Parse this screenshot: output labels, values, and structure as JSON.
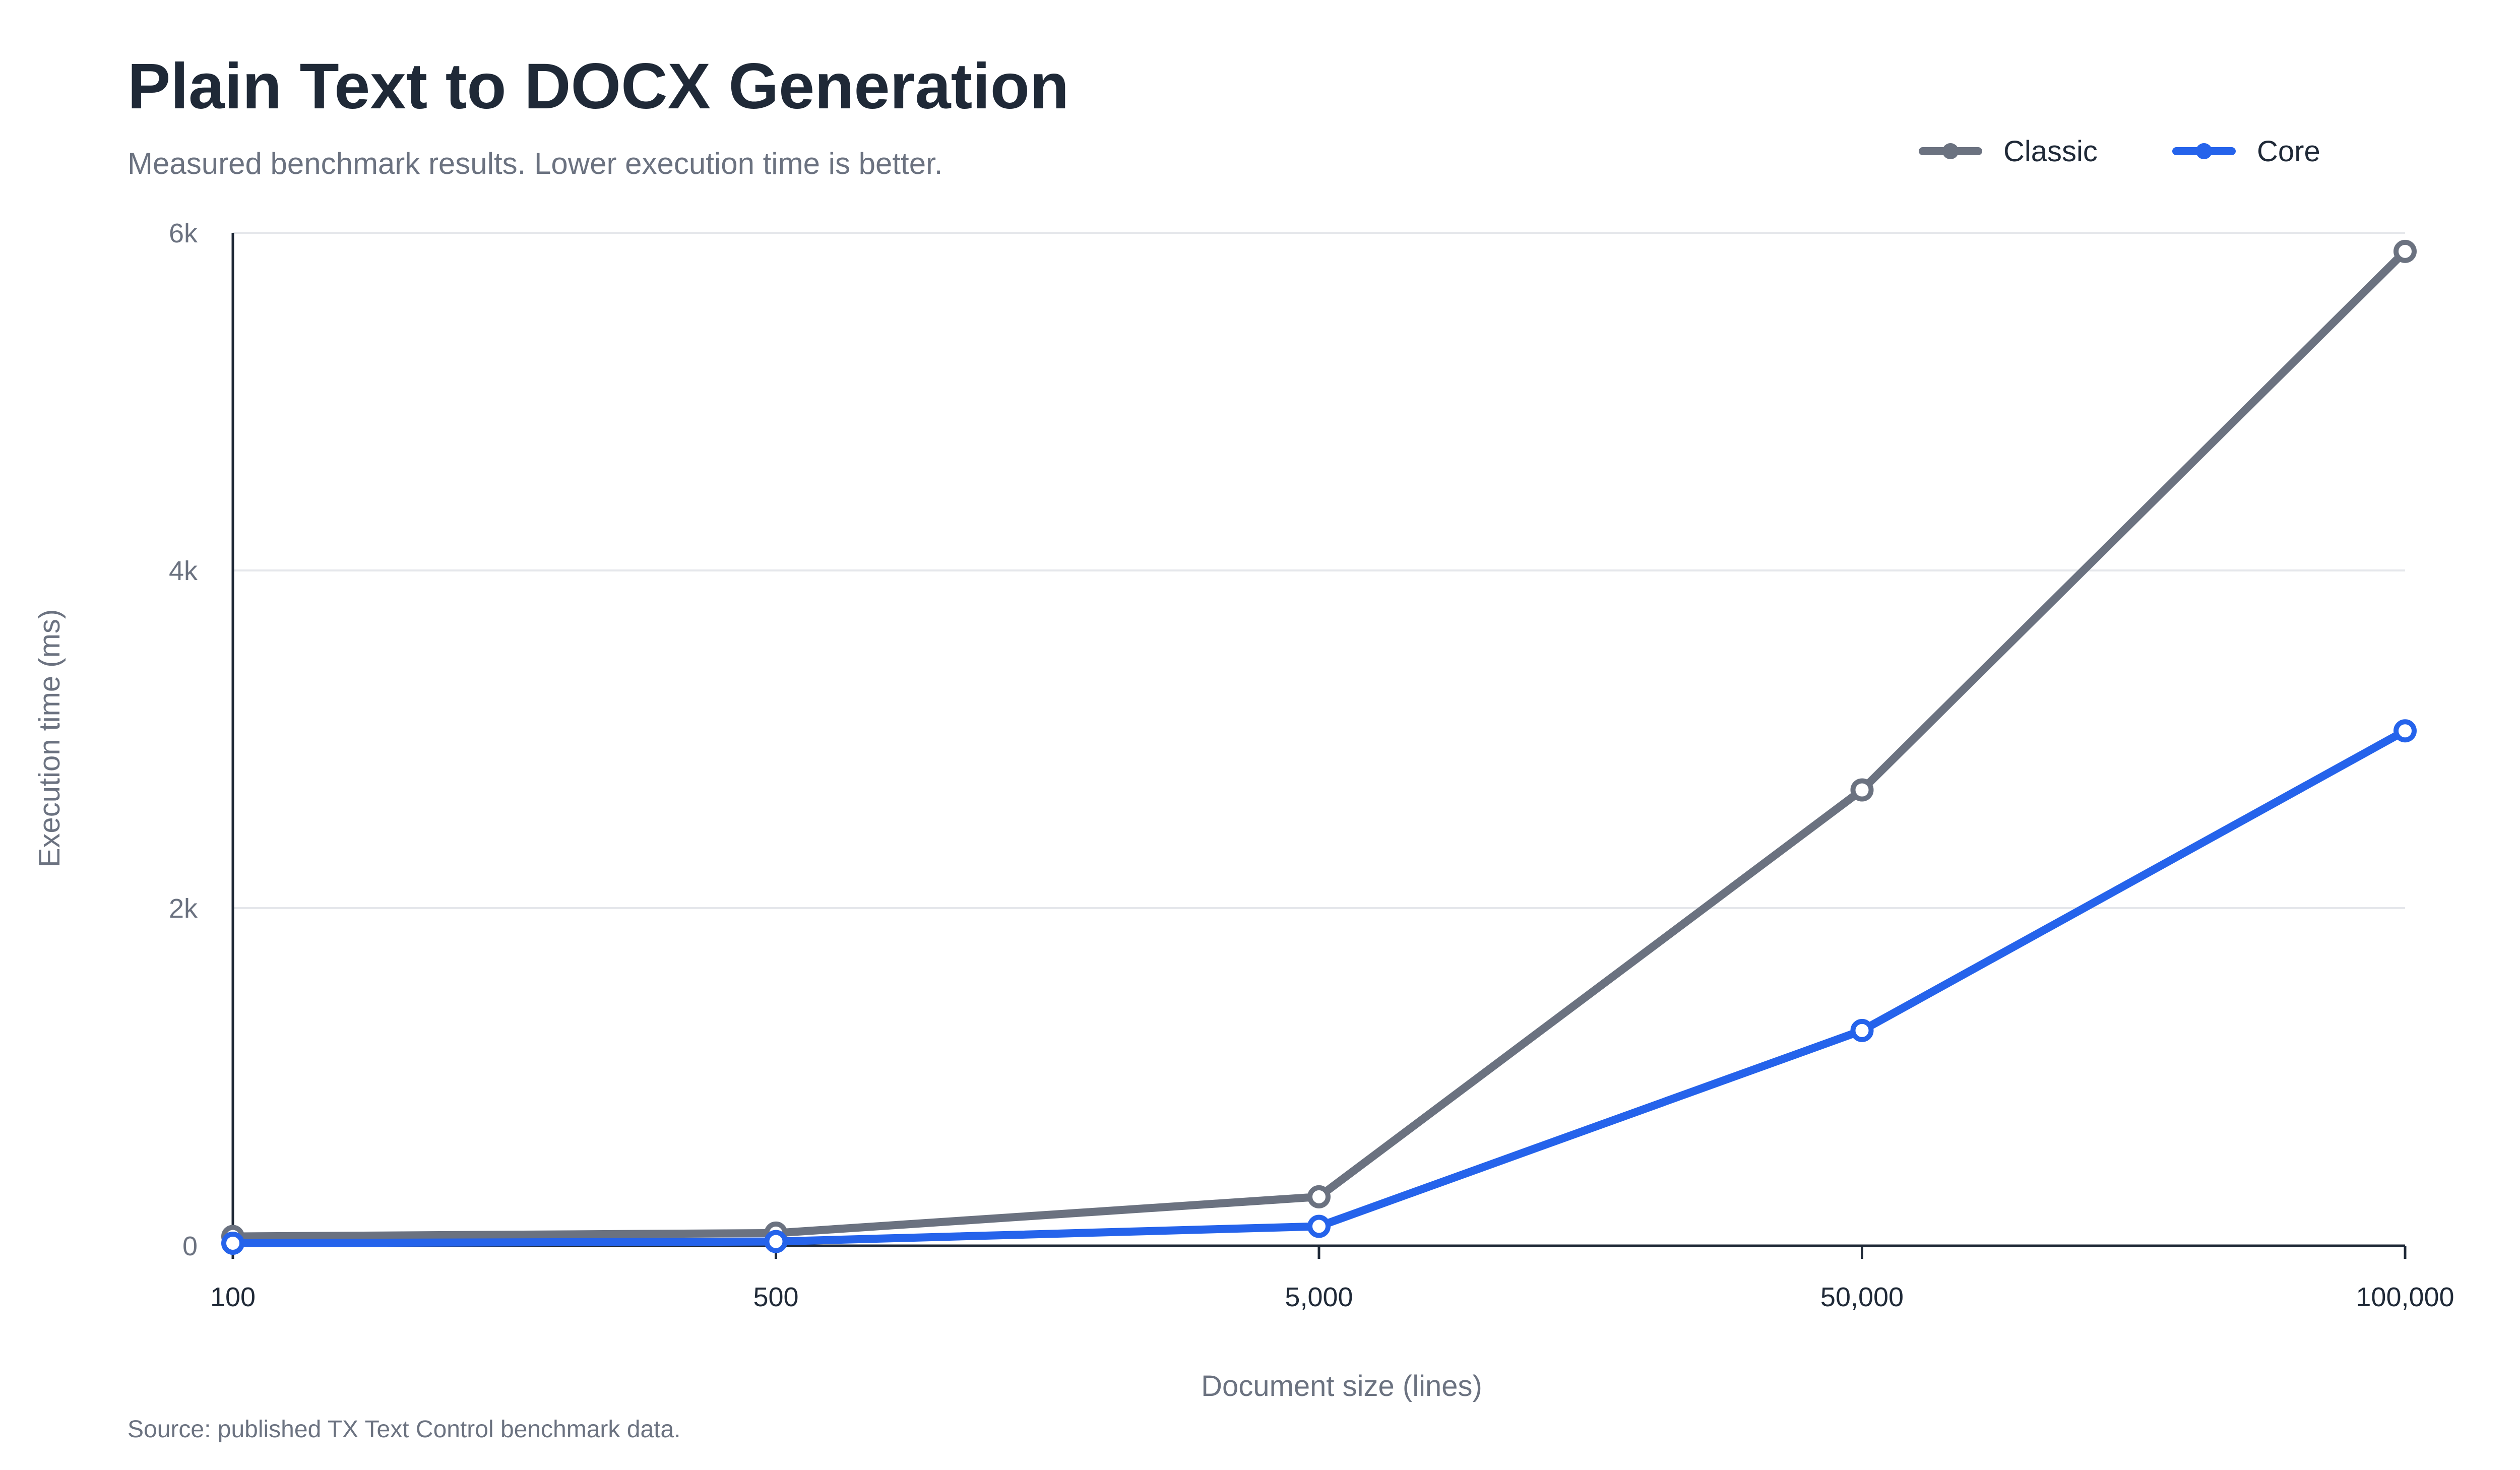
{
  "colors": {
    "background": "#ffffff",
    "title": "#1f2937",
    "subtitle": "#6b7280",
    "axis_text": "#6b7280",
    "tick_text": "#6b7280",
    "x_tick_text": "#1f2937",
    "grid": "#e5e7eb",
    "axis_line": "#1f2937",
    "classic": "#6b7280",
    "core": "#2563eb",
    "marker_fill": "#ffffff"
  },
  "chart_data": {
    "type": "line",
    "title": "Plain Text to DOCX Generation",
    "subtitle": "Measured benchmark results. Lower execution time is better.",
    "xlabel": "Document size (lines)",
    "ylabel": "Execution time (ms)",
    "categories": [
      "100",
      "500",
      "5,000",
      "50,000",
      "100,000"
    ],
    "x_scale": "categorical",
    "ylim": [
      0,
      6000
    ],
    "yticks": [
      0,
      2000,
      4000,
      6000
    ],
    "ytick_labels": [
      "0",
      "2k",
      "4k",
      "6k"
    ],
    "grid": "horizontal",
    "legend_position": "top-right",
    "series": [
      {
        "name": "Classic",
        "color": "#6b7280",
        "values": [
          55,
          75,
          290,
          2700,
          5890
        ]
      },
      {
        "name": "Core",
        "color": "#2563eb",
        "values": [
          15,
          25,
          115,
          1275,
          3050
        ]
      }
    ],
    "source": "Source: published TX Text Control benchmark data."
  }
}
